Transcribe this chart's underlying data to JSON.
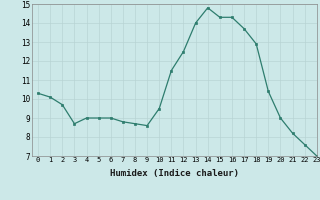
{
  "x": [
    0,
    1,
    2,
    3,
    4,
    5,
    6,
    7,
    8,
    9,
    10,
    11,
    12,
    13,
    14,
    15,
    16,
    17,
    18,
    19,
    20,
    21,
    22,
    23
  ],
  "y": [
    10.3,
    10.1,
    9.7,
    8.7,
    9.0,
    9.0,
    9.0,
    8.8,
    8.7,
    8.6,
    9.5,
    11.5,
    12.5,
    14.0,
    14.8,
    14.3,
    14.3,
    13.7,
    12.9,
    10.4,
    9.0,
    8.2,
    7.6,
    7.0
  ],
  "xlabel": "Humidex (Indice chaleur)",
  "ylim": [
    7,
    15
  ],
  "xlim": [
    -0.5,
    23
  ],
  "yticks": [
    7,
    8,
    9,
    10,
    11,
    12,
    13,
    14,
    15
  ],
  "xticks": [
    0,
    1,
    2,
    3,
    4,
    5,
    6,
    7,
    8,
    9,
    10,
    11,
    12,
    13,
    14,
    15,
    16,
    17,
    18,
    19,
    20,
    21,
    22,
    23
  ],
  "line_color": "#2e7d6e",
  "marker_color": "#2e7d6e",
  "bg_color": "#cce8e8",
  "grid_color": "#b8d4d4"
}
